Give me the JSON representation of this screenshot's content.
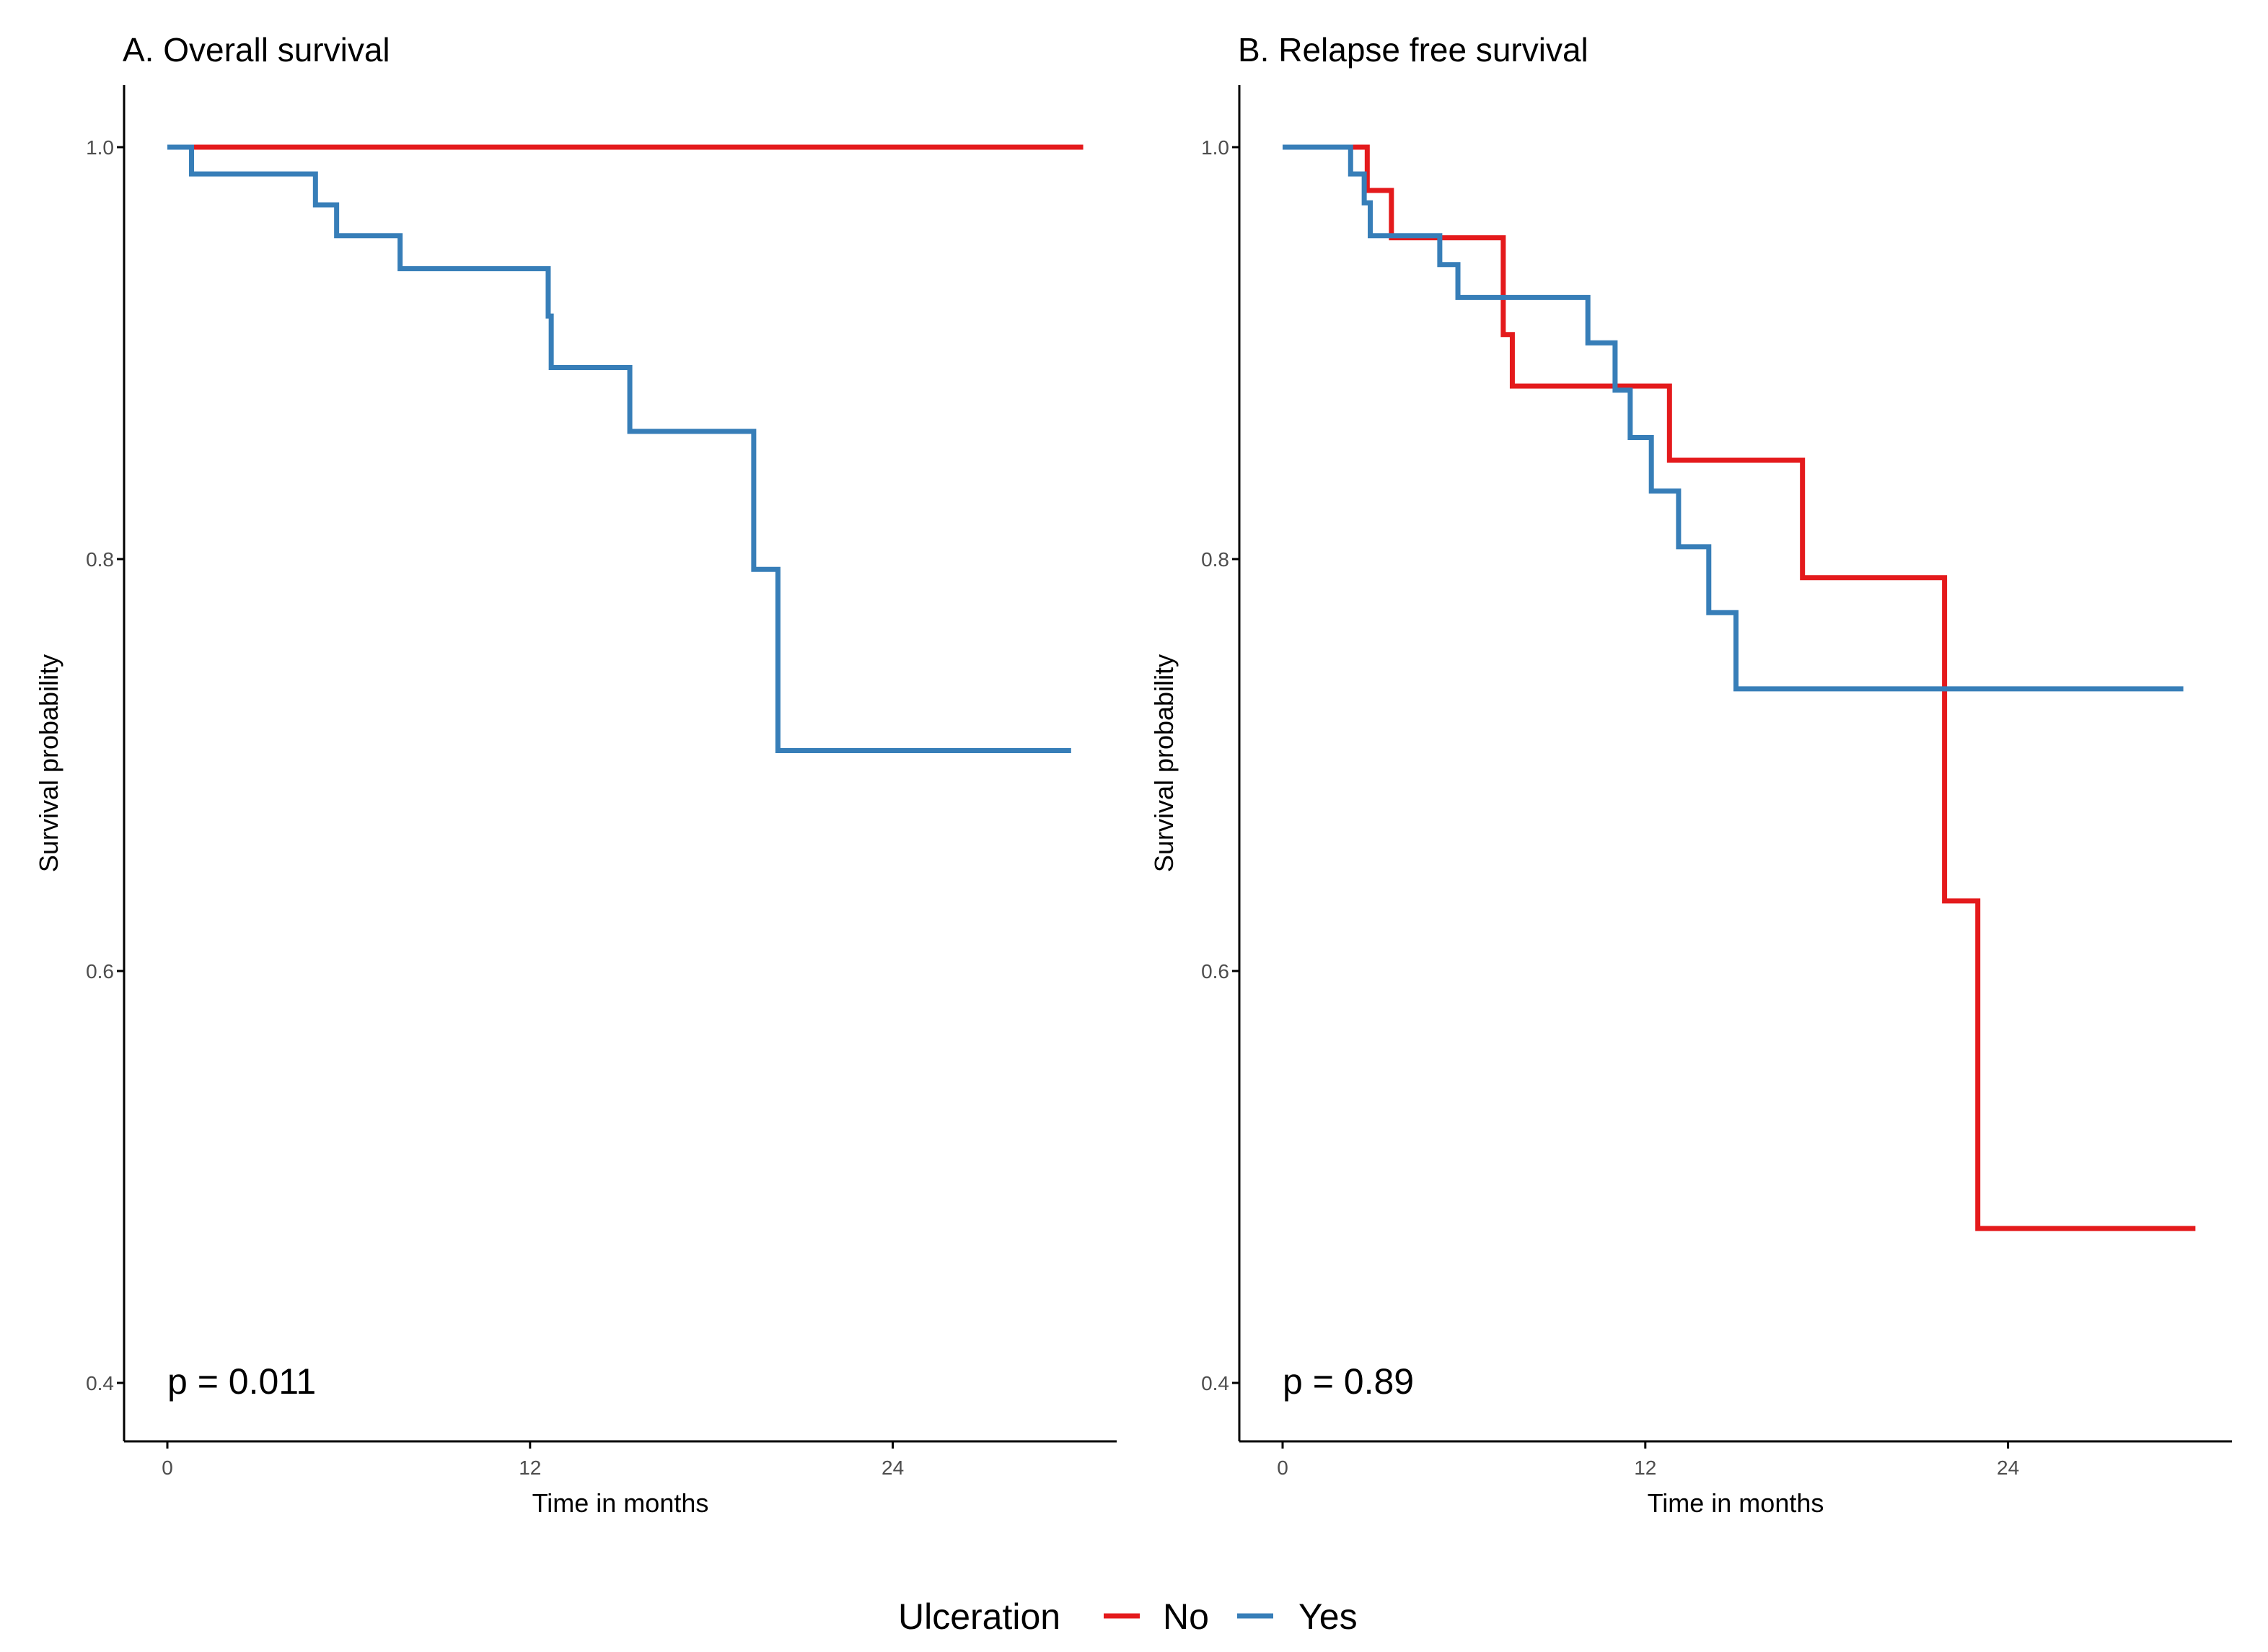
{
  "chart_data": [
    {
      "type": "line",
      "step": true,
      "title": "A. Overall survival",
      "xlabel": "Time in months",
      "ylabel": "Survival probability",
      "xlim": [
        0,
        31
      ],
      "ylim": [
        0.4,
        1.03
      ],
      "xticks": [
        "0",
        "12",
        "24"
      ],
      "yticks": [
        "0.4",
        "0.6",
        "0.8",
        "1.0"
      ],
      "annotation": "p = 0.011",
      "grid": false,
      "series": [
        {
          "name": "No",
          "color": "#e41a1c",
          "x": [
            0,
            30.3
          ],
          "y": [
            1.0,
            1.0
          ]
        },
        {
          "name": "Yes",
          "color": "#377eb8",
          "x": [
            0,
            0.8,
            4.9,
            5.6,
            7.7,
            12.6,
            12.7,
            15.3,
            19.4,
            20.2,
            29.9
          ],
          "y": [
            1.0,
            0.987,
            0.972,
            0.957,
            0.941,
            0.918,
            0.893,
            0.862,
            0.795,
            0.707,
            0.707
          ]
        }
      ]
    },
    {
      "type": "line",
      "step": true,
      "title": "B. Relapse free survival",
      "xlabel": "Time in months",
      "ylabel": "Survival probability",
      "xlim": [
        0,
        31
      ],
      "ylim": [
        0.4,
        1.03
      ],
      "xticks": [
        "0",
        "12",
        "24"
      ],
      "yticks": [
        "0.4",
        "0.6",
        "0.8",
        "1.0"
      ],
      "annotation": "p = 0.89",
      "grid": false,
      "series": [
        {
          "name": "No",
          "color": "#e41a1c",
          "x": [
            0,
            2.8,
            3.6,
            7.3,
            7.6,
            12.8,
            17.2,
            21.9,
            23.0,
            30.2
          ],
          "y": [
            1.0,
            0.979,
            0.956,
            0.909,
            0.884,
            0.848,
            0.791,
            0.634,
            0.475,
            0.475
          ]
        },
        {
          "name": "Yes",
          "color": "#377eb8",
          "x": [
            0,
            2.25,
            2.7,
            2.9,
            5.2,
            5.8,
            10.1,
            11.0,
            11.5,
            12.2,
            13.1,
            14.1,
            15.0,
            29.8
          ],
          "y": [
            1.0,
            0.987,
            0.973,
            0.957,
            0.943,
            0.927,
            0.905,
            0.882,
            0.859,
            0.833,
            0.806,
            0.774,
            0.737,
            0.737
          ]
        }
      ]
    }
  ],
  "legend": {
    "title": "Ulceration",
    "items": [
      {
        "label": "No",
        "color": "#e41a1c"
      },
      {
        "label": "Yes",
        "color": "#377eb8"
      }
    ],
    "position": "bottom"
  }
}
